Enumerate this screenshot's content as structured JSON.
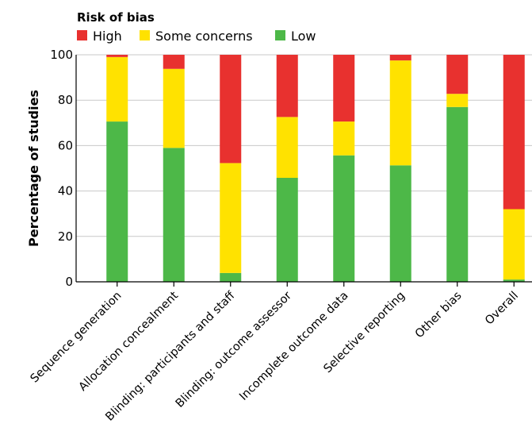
{
  "chart_data": {
    "type": "bar",
    "stacked": true,
    "legend_title": "Risk of bias",
    "legend_position": "top-left",
    "ylabel": "Percentage of studies",
    "xlabel": "",
    "ylim": [
      0,
      100
    ],
    "yticks": [
      0,
      20,
      40,
      60,
      80,
      100
    ],
    "grid": true,
    "categories": [
      "Sequence generation",
      "Allocation concealment",
      "Blinding: participants and staff",
      "Blinding: outcome assessor",
      "Incomplete outcome data",
      "Selective reporting",
      "Other bias",
      "Overall"
    ],
    "series": [
      {
        "name": "Low",
        "color": "#4db848",
        "values": [
          70.6,
          59.0,
          3.9,
          45.8,
          55.7,
          51.3,
          77.0,
          1.0
        ]
      },
      {
        "name": "Some concerns",
        "color": "#ffe200",
        "values": [
          28.4,
          34.8,
          48.4,
          26.8,
          14.9,
          46.2,
          5.8,
          31.0
        ]
      },
      {
        "name": "High",
        "color": "#e8312f",
        "values": [
          1.0,
          6.2,
          47.7,
          27.4,
          29.4,
          2.5,
          17.2,
          68.0
        ]
      }
    ],
    "legend_order": [
      "High",
      "Some concerns",
      "Low"
    ]
  }
}
